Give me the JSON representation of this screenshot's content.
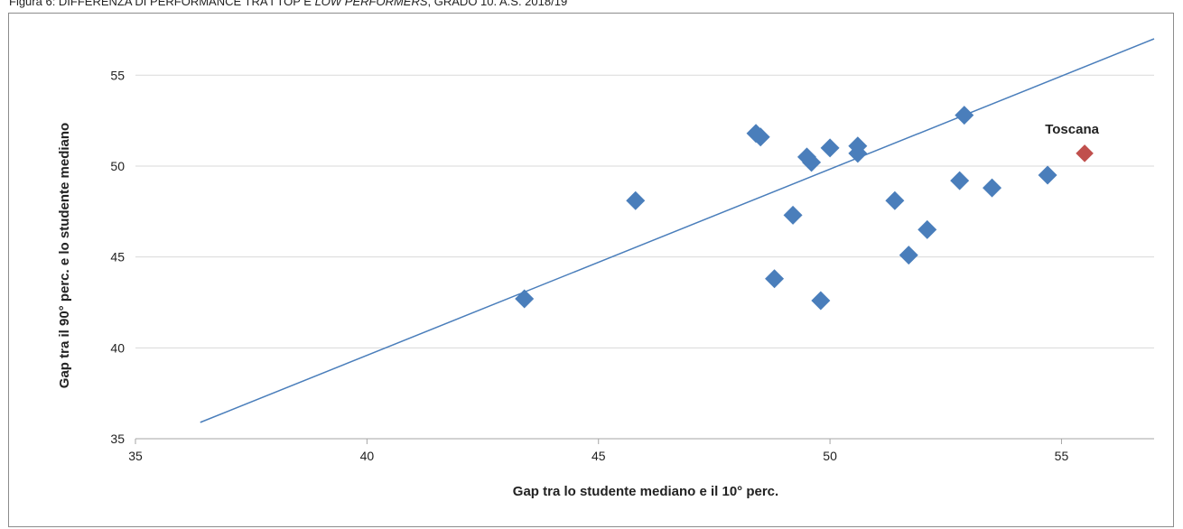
{
  "caption": {
    "prefix": "Figura 6: DIFFERENZA DI PERFORMANCE TRA I TOP E ",
    "italic": "LOW PERFORMERS",
    "suffix": ", GRADO 10. A.S. 2018/19"
  },
  "chart_data": {
    "type": "scatter",
    "title": "",
    "xlabel": "Gap tra lo studente mediano e il 10° perc.",
    "ylabel": "Gap tra il 90° perc. e lo studente mediano",
    "xlim": [
      35,
      57
    ],
    "ylim": [
      35,
      57
    ],
    "xticks": [
      35,
      40,
      45,
      50,
      55
    ],
    "yticks": [
      35,
      40,
      45,
      50,
      55
    ],
    "grid": "horizontal",
    "colors": {
      "points": "#4a7ebb",
      "highlight": "#c0504d",
      "line": "#4a7ebb",
      "grid": "#d9d9d9"
    },
    "series": [
      {
        "points": [
          {
            "x": 43.4,
            "y": 42.7
          },
          {
            "x": 45.8,
            "y": 48.1
          },
          {
            "x": 48.4,
            "y": 51.8
          },
          {
            "x": 48.5,
            "y": 51.6
          },
          {
            "x": 48.8,
            "y": 43.8
          },
          {
            "x": 49.2,
            "y": 47.3
          },
          {
            "x": 49.5,
            "y": 50.5
          },
          {
            "x": 49.6,
            "y": 50.2
          },
          {
            "x": 49.8,
            "y": 42.6
          },
          {
            "x": 50.0,
            "y": 51.0
          },
          {
            "x": 50.6,
            "y": 50.7
          },
          {
            "x": 50.6,
            "y": 51.1
          },
          {
            "x": 51.4,
            "y": 48.1
          },
          {
            "x": 51.7,
            "y": 45.1
          },
          {
            "x": 52.1,
            "y": 46.5
          },
          {
            "x": 52.8,
            "y": 49.2
          },
          {
            "x": 52.9,
            "y": 52.8
          },
          {
            "x": 53.5,
            "y": 48.8
          },
          {
            "x": 54.7,
            "y": 49.5
          }
        ]
      },
      {
        "name": "Toscana",
        "points": [
          {
            "x": 55.5,
            "y": 50.7
          }
        ]
      }
    ],
    "reference_line": {
      "x": [
        36.4,
        57.0
      ],
      "y": [
        35.9,
        57.0
      ]
    }
  }
}
